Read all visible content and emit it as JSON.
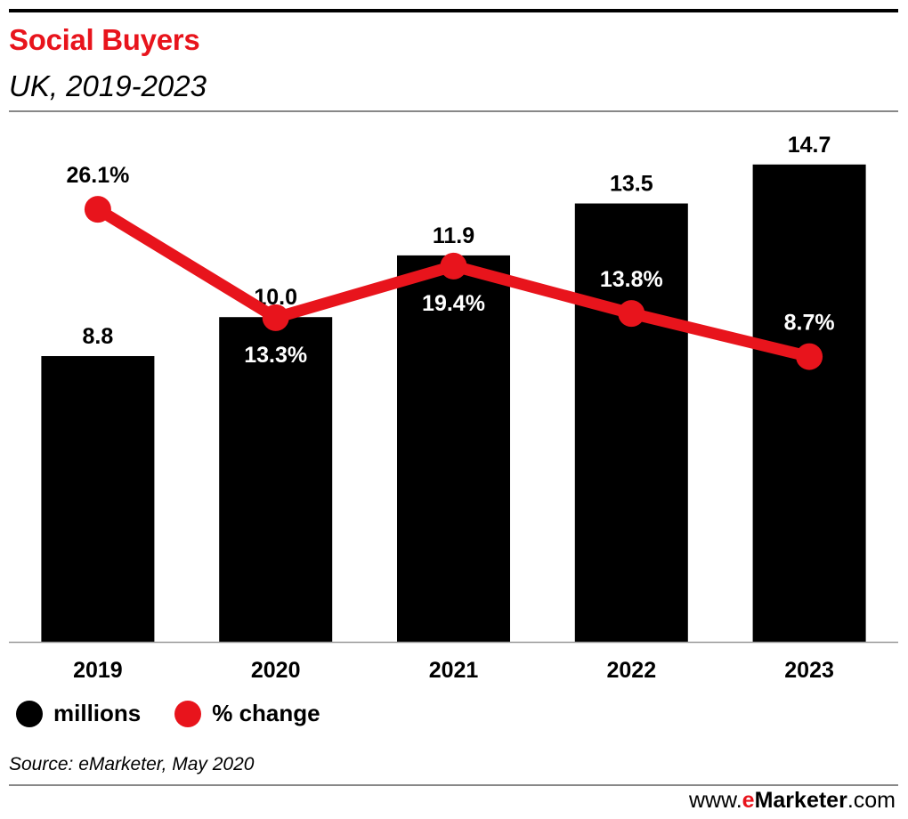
{
  "header": {
    "title": "Social Buyers",
    "subtitle": "UK, 2019-2023"
  },
  "legend": {
    "items": [
      {
        "label": "millions",
        "color": "#000000",
        "icon": "circle-icon"
      },
      {
        "label": "% change",
        "color": "#e8141c",
        "icon": "octagon-icon"
      }
    ]
  },
  "footer": {
    "source": "Source: eMarketer, May 2020",
    "brand_prefix": "www.",
    "brand_e": "e",
    "brand_name": "Marketer",
    "brand_suffix": ".com"
  },
  "colors": {
    "bar": "#000000",
    "line": "#e8141c",
    "title": "#e8141c"
  },
  "chart_data": {
    "type": "bar",
    "categories": [
      "2019",
      "2020",
      "2021",
      "2022",
      "2023"
    ],
    "series": [
      {
        "name": "millions",
        "type": "bar",
        "values": [
          8.8,
          10.0,
          11.9,
          13.5,
          14.7
        ],
        "labels": [
          "8.8",
          "10.0",
          "11.9",
          "13.5",
          "14.7"
        ]
      },
      {
        "name": "% change",
        "type": "line",
        "values": [
          26.1,
          13.3,
          19.4,
          13.8,
          8.7
        ],
        "labels": [
          "26.1%",
          "13.3%",
          "19.4%",
          "13.8%",
          "8.7%"
        ]
      }
    ],
    "title": "Social Buyers",
    "subtitle": "UK, 2019-2023",
    "xlabel": "",
    "ylabel": "",
    "ylim": [
      0,
      15.9
    ],
    "y2lim": [
      -25,
      36
    ],
    "grid": false,
    "legend": "bottom-left"
  }
}
